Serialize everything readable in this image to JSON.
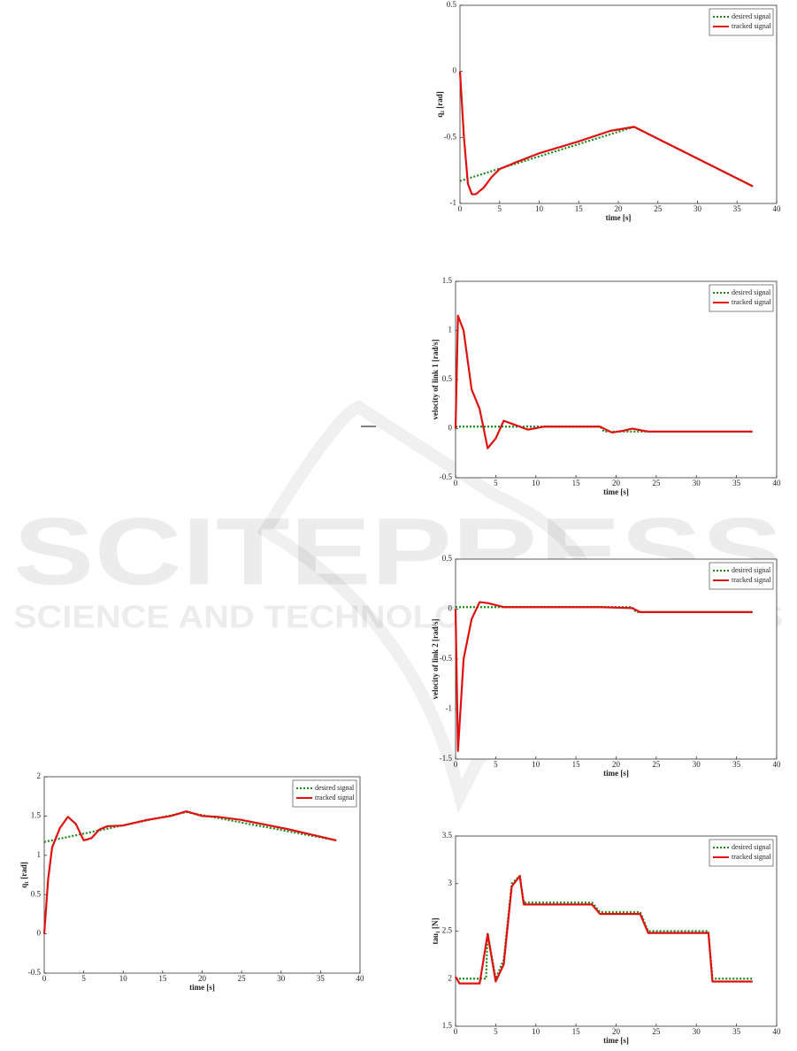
{
  "watermark": {
    "title": "SCITEPRESS",
    "subtitle": "SCIENCE AND TECHNOLOGY PUBLICATIONS"
  },
  "chart_data": [
    {
      "type": "line",
      "xlabel": "time [s]",
      "ylabel": "q₂ [rad]",
      "xlim": [
        0,
        40
      ],
      "ylim": [
        -1,
        0.5
      ],
      "xticks": [
        0,
        5,
        10,
        15,
        20,
        25,
        30,
        35,
        40
      ],
      "yticks": [
        -1,
        -0.5,
        0,
        0.5
      ],
      "legend": "upper right",
      "series": [
        {
          "name": "desired signal",
          "color": "#1a8a1a",
          "line_style": "dotted",
          "x": [
            0,
            22,
            37
          ],
          "values": [
            -0.83,
            -0.42,
            -0.87
          ]
        },
        {
          "name": "tracked signal",
          "color": "#e01010",
          "line_style": "solid",
          "x": [
            0,
            0.5,
            1,
            1.5,
            2,
            3,
            4,
            5,
            7,
            10,
            15,
            19,
            22,
            25,
            30,
            37
          ],
          "values": [
            0,
            -0.5,
            -0.85,
            -0.93,
            -0.93,
            -0.88,
            -0.8,
            -0.74,
            -0.69,
            -0.62,
            -0.53,
            -0.45,
            -0.42,
            -0.51,
            -0.66,
            -0.87
          ]
        }
      ]
    },
    {
      "type": "line",
      "xlabel": "time [s]",
      "ylabel": "velocity of link 1 [rad/s]",
      "xlim": [
        0,
        40
      ],
      "ylim": [
        -0.5,
        1.5
      ],
      "xticks": [
        0,
        5,
        10,
        15,
        20,
        25,
        30,
        35,
        40
      ],
      "yticks": [
        -0.5,
        0,
        0.5,
        1,
        1.5
      ],
      "legend": "upper right",
      "series": [
        {
          "name": "desired signal",
          "color": "#1a8a1a",
          "line_style": "dotted",
          "x": [
            0,
            18,
            18.5,
            37
          ],
          "values": [
            0.02,
            0.02,
            -0.03,
            -0.03
          ]
        },
        {
          "name": "tracked signal",
          "color": "#e01010",
          "line_style": "solid",
          "x": [
            0,
            0.3,
            1,
            2,
            3,
            4,
            5,
            6,
            7,
            9,
            11,
            18,
            19.5,
            21,
            22,
            24,
            37
          ],
          "values": [
            0,
            1.15,
            1.0,
            0.4,
            0.2,
            -0.2,
            -0.1,
            0.08,
            0.05,
            -0.01,
            0.02,
            0.02,
            -0.04,
            -0.02,
            0,
            -0.03,
            -0.03
          ]
        }
      ]
    },
    {
      "type": "line",
      "xlabel": "time [s]",
      "ylabel": "velocity of link 2 [rad/s]",
      "xlim": [
        0,
        40
      ],
      "ylim": [
        -1.5,
        0.5
      ],
      "xticks": [
        0,
        5,
        10,
        15,
        20,
        25,
        30,
        35,
        40
      ],
      "yticks": [
        -1.5,
        -1,
        -0.5,
        0,
        0.5
      ],
      "legend": "upper right",
      "series": [
        {
          "name": "desired signal",
          "color": "#1a8a1a",
          "line_style": "dotted",
          "x": [
            0,
            22,
            22.5,
            37
          ],
          "values": [
            0.02,
            0.02,
            -0.03,
            -0.03
          ]
        },
        {
          "name": "tracked signal",
          "color": "#e01010",
          "line_style": "solid",
          "x": [
            0,
            0.3,
            1,
            2,
            3,
            4,
            6,
            18,
            22,
            23,
            37
          ],
          "values": [
            0,
            -1.42,
            -0.5,
            -0.1,
            0.07,
            0.06,
            0.02,
            0.02,
            0.01,
            -0.03,
            -0.03
          ]
        }
      ]
    },
    {
      "type": "line",
      "xlabel": "time [s]",
      "ylabel": "q₁ [rad]",
      "xlim": [
        0,
        40
      ],
      "ylim": [
        -0.5,
        2
      ],
      "xticks": [
        0,
        5,
        10,
        15,
        20,
        25,
        30,
        35,
        40
      ],
      "yticks": [
        -0.5,
        0,
        0.5,
        1,
        1.5,
        2
      ],
      "legend": "upper right",
      "series": [
        {
          "name": "desired signal",
          "color": "#1a8a1a",
          "line_style": "dotted",
          "x": [
            0,
            18,
            37
          ],
          "values": [
            1.17,
            1.55,
            1.19
          ]
        },
        {
          "name": "tracked signal",
          "color": "#e01010",
          "line_style": "solid",
          "x": [
            0,
            0.5,
            1,
            2,
            3,
            4,
            5,
            6,
            7,
            8,
            10,
            13,
            16,
            18,
            20,
            22,
            25,
            31,
            37
          ],
          "values": [
            0,
            0.7,
            1.1,
            1.35,
            1.49,
            1.4,
            1.19,
            1.22,
            1.33,
            1.37,
            1.38,
            1.45,
            1.5,
            1.56,
            1.5,
            1.49,
            1.45,
            1.33,
            1.19
          ]
        }
      ]
    },
    {
      "type": "line",
      "xlabel": "time [s]",
      "ylabel": "tau₁ [N]",
      "xlim": [
        0,
        40
      ],
      "ylim": [
        1.5,
        3.5
      ],
      "xticks": [
        0,
        5,
        10,
        15,
        20,
        25,
        30,
        35,
        40
      ],
      "yticks": [
        1.5,
        2,
        2.5,
        3,
        3.5
      ],
      "legend": "upper right",
      "series": [
        {
          "name": "desired signal",
          "color": "#1a8a1a",
          "line_style": "dotted",
          "x": [
            0,
            3.8,
            4,
            5,
            6,
            7,
            8,
            8.5,
            17,
            18,
            23,
            24,
            31.5,
            32,
            37
          ],
          "values": [
            2,
            2,
            2.48,
            2,
            2.2,
            3,
            3.08,
            2.8,
            2.8,
            2.7,
            2.7,
            2.5,
            2.5,
            2,
            2
          ]
        },
        {
          "name": "tracked signal",
          "color": "#e01010",
          "line_style": "solid",
          "x": [
            0,
            0.5,
            3,
            4,
            5,
            6,
            7,
            8,
            8.5,
            17,
            18,
            23,
            24,
            31.5,
            32,
            37
          ],
          "values": [
            2.02,
            1.95,
            1.95,
            2.47,
            1.97,
            2.15,
            2.97,
            3.08,
            2.78,
            2.78,
            2.68,
            2.68,
            2.48,
            2.48,
            1.97,
            1.97
          ]
        }
      ]
    }
  ]
}
